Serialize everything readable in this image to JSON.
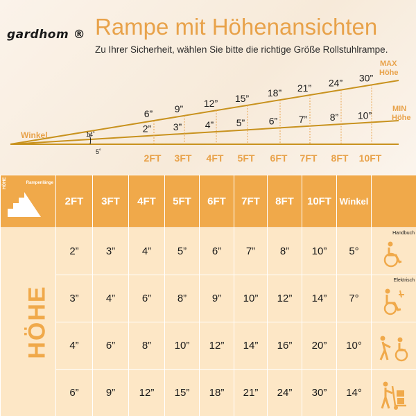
{
  "header": {
    "brand": "gardhom ®",
    "title": "Rampe mit Höhenansichten",
    "subtitle": "Zu Ihrer Sicherheit, wählen Sie bitte die richtige Größe Rollstuhlrampe."
  },
  "diagram": {
    "winkel_label": "Winkel",
    "angle_max": "14˚",
    "angle_min": "5˚",
    "max_label_1": "MAX",
    "max_label_2": "Höhe",
    "min_label_1": "MIN",
    "min_label_2": "Höhe",
    "max_heights": [
      "6”",
      "9”",
      "12”",
      "15”",
      "18”",
      "21”",
      "24”",
      "30”"
    ],
    "min_heights": [
      "2”",
      "3”",
      "4”",
      "5”",
      "6”",
      "7”",
      "8”",
      "10”"
    ],
    "lengths": [
      "2FT",
      "3FT",
      "4FT",
      "5FT",
      "6FT",
      "7FT",
      "8FT",
      "10FT"
    ]
  },
  "table": {
    "corner_top": "Rampenlänge",
    "corner_side": "HÖHE",
    "columns": [
      "2FT",
      "3FT",
      "4FT",
      "5FT",
      "6FT",
      "7FT",
      "8FT",
      "10FT",
      "Winkel"
    ],
    "side_label": "HÖHE",
    "rows": [
      {
        "values": [
          "2”",
          "3”",
          "4”",
          "5”",
          "6”",
          "7”",
          "8”",
          "10”",
          "5°"
        ],
        "icon": "manual-wheelchair-icon",
        "icon_label": "Handbuch"
      },
      {
        "values": [
          "3”",
          "4”",
          "6”",
          "8”",
          "9”",
          "10”",
          "12”",
          "14”",
          "7°"
        ],
        "icon": "electric-wheelchair-icon",
        "icon_label": "Elektrisch"
      },
      {
        "values": [
          "4”",
          "6”",
          "8”",
          "10”",
          "12”",
          "14”",
          "16”",
          "20”",
          "10°"
        ],
        "icon": "assisted-wheelchair-icon",
        "icon_label": ""
      },
      {
        "values": [
          "6”",
          "9”",
          "12”",
          "15”",
          "18”",
          "21”",
          "24”",
          "30”",
          "14°"
        ],
        "icon": "hand-truck-icon",
        "icon_label": ""
      }
    ]
  },
  "colors": {
    "accent": "#f0a94a",
    "title": "#e8a24a",
    "cell": "#fde7c6",
    "line": "#c8921e"
  }
}
